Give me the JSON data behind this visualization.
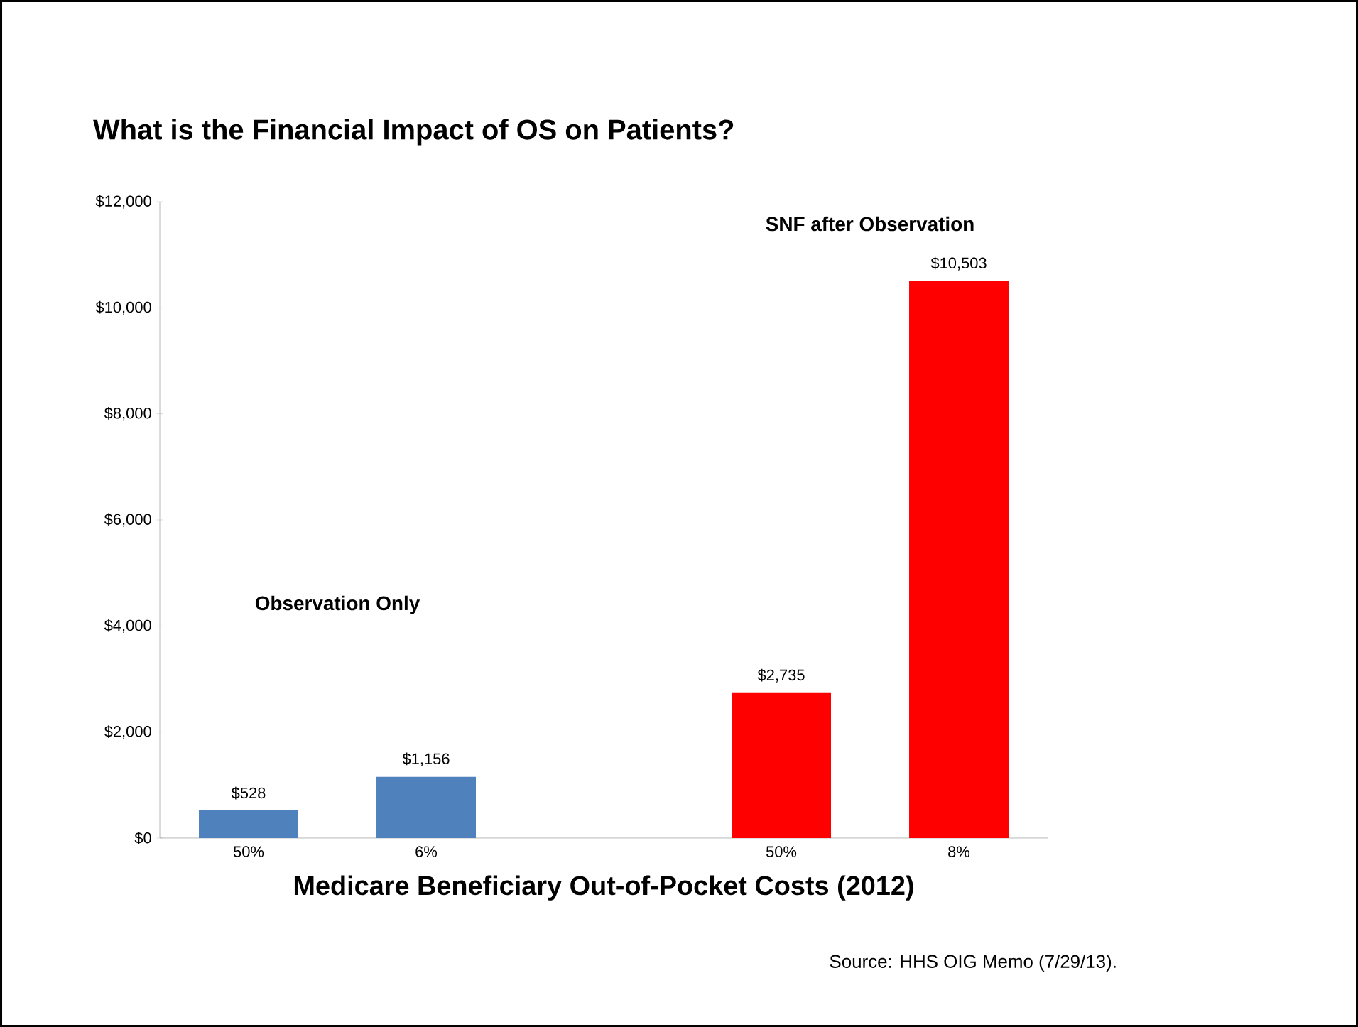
{
  "chart_data": {
    "type": "bar",
    "title": "What is the Financial Impact of OS on Patients?",
    "xlabel": "Medicare Beneficiary Out-of-Pocket Costs (2012)",
    "categories": [
      "50%",
      "6%",
      null,
      "50%",
      "8%"
    ],
    "values": [
      528,
      1156,
      null,
      2735,
      10503
    ],
    "colors": [
      "#4f81bd",
      "#4f81bd",
      null,
      "#ff0000",
      "#ff0000"
    ],
    "value_labels": [
      "$528",
      "$1,156",
      null,
      "$2,735",
      "$10,503"
    ],
    "ylim": [
      0,
      12000
    ],
    "yticks": [
      {
        "value": 0,
        "label": "$0"
      },
      {
        "value": 2000,
        "label": "$2,000"
      },
      {
        "value": 4000,
        "label": "$4,000"
      },
      {
        "value": 6000,
        "label": "$6,000"
      },
      {
        "value": 8000,
        "label": "$8,000"
      },
      {
        "value": 10000,
        "label": "$10,000"
      },
      {
        "value": 12000,
        "label": "$12,000"
      }
    ],
    "annotations": [
      "Observation Only",
      "SNF after Observation",
      "Source: HHS OIG Memo (7/29/13)."
    ],
    "grid": false
  }
}
